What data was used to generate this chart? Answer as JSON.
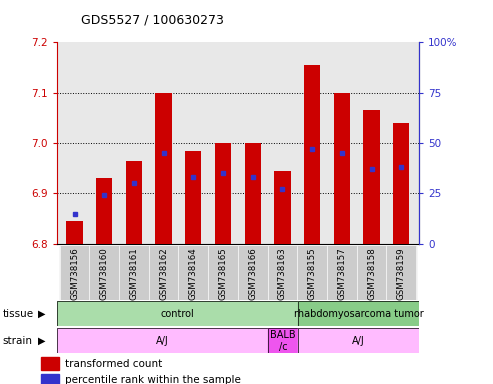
{
  "title": "GDS5527 / 100630273",
  "samples": [
    "GSM738156",
    "GSM738160",
    "GSM738161",
    "GSM738162",
    "GSM738164",
    "GSM738165",
    "GSM738166",
    "GSM738163",
    "GSM738155",
    "GSM738157",
    "GSM738158",
    "GSM738159"
  ],
  "transformed_count": [
    6.845,
    6.93,
    6.965,
    7.1,
    6.985,
    7.0,
    7.0,
    6.945,
    7.155,
    7.1,
    7.065,
    7.04
  ],
  "baseline": 6.8,
  "percentile_rank": [
    15,
    24,
    30,
    45,
    33,
    35,
    33,
    27,
    47,
    45,
    37,
    38
  ],
  "ylim_left": [
    6.8,
    7.2
  ],
  "ylim_right": [
    0,
    100
  ],
  "yticks_left": [
    6.8,
    6.9,
    7.0,
    7.1,
    7.2
  ],
  "yticks_right": [
    0,
    25,
    50,
    75,
    100
  ],
  "ytick_labels_right": [
    "0",
    "25",
    "50",
    "75",
    "100%"
  ],
  "bar_color": "#cc0000",
  "dot_color": "#3333cc",
  "bar_width": 0.55,
  "plot_bg": "#e8e8e8",
  "axis_color_left": "#cc0000",
  "axis_color_right": "#3333cc",
  "legend_items": [
    {
      "color": "#cc0000",
      "label": "transformed count"
    },
    {
      "color": "#3333cc",
      "label": "percentile rank within the sample"
    }
  ]
}
